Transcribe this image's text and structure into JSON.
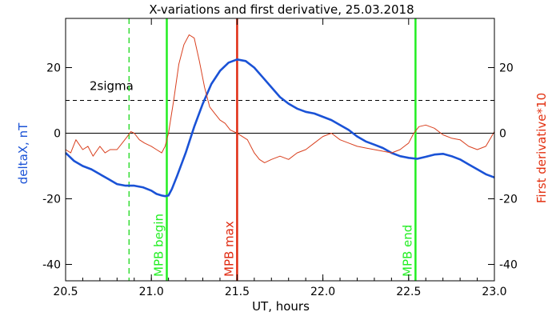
{
  "chart_data": {
    "type": "line",
    "title": "X-variations and first derivative, 25.03.2018",
    "xlabel": "UT, hours",
    "ylabel_left": "deltaX, nT",
    "ylabel_right": "First derivative*10",
    "xlim": [
      20.5,
      23.0
    ],
    "ylim": [
      -45,
      35
    ],
    "x_ticks": [
      20.5,
      21.0,
      21.5,
      22.0,
      22.5,
      23.0
    ],
    "x_tick_labels": [
      "20.5",
      "21.0",
      "21.5",
      "22.0",
      "22.5",
      "23.0"
    ],
    "y_ticks": [
      20,
      0,
      -20,
      -40
    ],
    "y_tick_labels": [
      "20",
      "0",
      "-20",
      "-40"
    ],
    "grid": false,
    "sigma_level": 10,
    "sigma_label": "2sigma",
    "zero_level": 0,
    "series": [
      {
        "color": "#1a52d6",
        "x": [
          20.5,
          20.55,
          20.6,
          20.65,
          20.7,
          20.75,
          20.8,
          20.85,
          20.9,
          20.95,
          21.0,
          21.03,
          21.06,
          21.08,
          21.1,
          21.12,
          21.15,
          21.2,
          21.25,
          21.3,
          21.35,
          21.4,
          21.45,
          21.5,
          21.55,
          21.6,
          21.65,
          21.7,
          21.75,
          21.8,
          21.85,
          21.9,
          21.95,
          22.0,
          22.05,
          22.1,
          22.15,
          22.2,
          22.25,
          22.3,
          22.35,
          22.4,
          22.45,
          22.5,
          22.55,
          22.6,
          22.65,
          22.7,
          22.75,
          22.8,
          22.85,
          22.9,
          22.95,
          23.0
        ],
        "y": [
          -6,
          -8.5,
          -10,
          -11,
          -12.5,
          -14,
          -15.5,
          -16,
          -16,
          -16.5,
          -17.5,
          -18.5,
          -19,
          -19.2,
          -19,
          -17,
          -13,
          -6,
          2,
          9,
          15,
          19,
          21.5,
          22.5,
          22,
          20,
          17,
          14,
          11,
          9,
          7.5,
          6.5,
          6,
          5,
          4,
          2.5,
          1,
          -1,
          -2.5,
          -3.5,
          -4.5,
          -6,
          -7,
          -7.5,
          -7.8,
          -7.2,
          -6.5,
          -6.3,
          -7,
          -8,
          -9.5,
          -11,
          -12.5,
          -13.5
        ]
      },
      {
        "color": "#d9401f",
        "x": [
          20.5,
          20.53,
          20.56,
          20.6,
          20.63,
          20.66,
          20.7,
          20.73,
          20.76,
          20.8,
          20.83,
          20.86,
          20.88,
          20.9,
          20.93,
          20.96,
          21.0,
          21.03,
          21.06,
          21.08,
          21.1,
          21.13,
          21.16,
          21.19,
          21.22,
          21.25,
          21.28,
          21.31,
          21.34,
          21.37,
          21.4,
          21.43,
          21.46,
          21.5,
          21.53,
          21.56,
          21.6,
          21.63,
          21.66,
          21.7,
          21.75,
          21.8,
          21.85,
          21.9,
          21.95,
          22.0,
          22.05,
          22.1,
          22.15,
          22.2,
          22.25,
          22.3,
          22.35,
          22.4,
          22.45,
          22.5,
          22.53,
          22.56,
          22.6,
          22.65,
          22.7,
          22.75,
          22.8,
          22.85,
          22.9,
          22.95,
          23.0
        ],
        "y": [
          -5,
          -6,
          -2,
          -5,
          -4,
          -7,
          -4,
          -6,
          -5,
          -5,
          -3,
          -1,
          0.5,
          0,
          -2,
          -3,
          -4,
          -5,
          -6,
          -4,
          0,
          10,
          21,
          27,
          30,
          29,
          22,
          14,
          8,
          6,
          4,
          3,
          1,
          0,
          -1,
          -2,
          -6,
          -8,
          -9,
          -8,
          -7,
          -8,
          -6,
          -5,
          -3,
          -1,
          0,
          -2,
          -3,
          -4,
          -4.5,
          -5,
          -5.5,
          -6,
          -5,
          -3,
          0,
          2,
          2.5,
          1.5,
          -0.5,
          -1.5,
          -2,
          -4,
          -5,
          -4,
          0.5
        ]
      }
    ],
    "vertical_markers": [
      {
        "x": 20.87,
        "color": "#33dd33",
        "style": "dashed",
        "label": ""
      },
      {
        "x": 21.09,
        "color": "#22ee22",
        "style": "solid",
        "label": "MPB begin"
      },
      {
        "x": 21.5,
        "color": "#e02a10",
        "style": "solid",
        "label": "MPB max"
      },
      {
        "x": 22.54,
        "color": "#22ee22",
        "style": "solid",
        "label": "MPB end"
      }
    ]
  },
  "colors": {
    "left_axis_label": "#1a52d6",
    "right_axis_label": "#e23010"
  }
}
